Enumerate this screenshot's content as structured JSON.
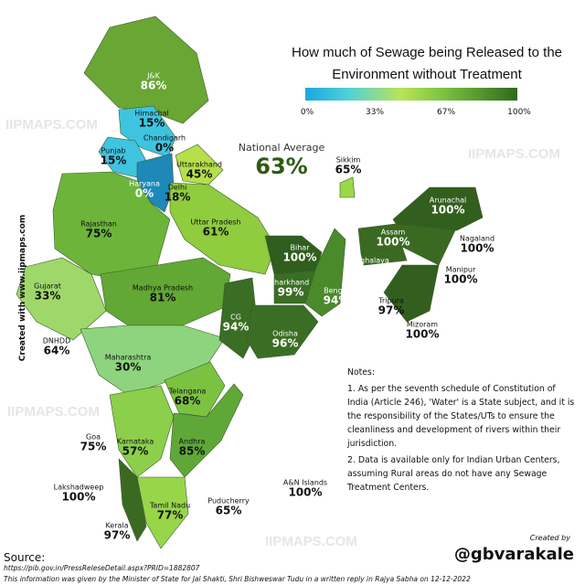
{
  "watermark": "IIPMAPS.COM",
  "title_line1": "How much of Sewage being Released to the",
  "title_line2": "Environment without Treatment",
  "legend": {
    "ticks": [
      "0%",
      "33%",
      "67%",
      "100%"
    ],
    "colors": [
      "#1aa7e0",
      "#b9e35a",
      "#7cc241",
      "#2f6a1d"
    ]
  },
  "national_average": {
    "label": "National Average",
    "value": "63%"
  },
  "states": [
    {
      "name": "J&K",
      "value": "86%"
    },
    {
      "name": "Himachal",
      "value": "15%"
    },
    {
      "name": "Punjab",
      "value": "15%"
    },
    {
      "name": "Chandigarh",
      "value": "0%"
    },
    {
      "name": "Haryana",
      "value": "0%"
    },
    {
      "name": "Uttarakhand",
      "value": "45%"
    },
    {
      "name": "Delhi",
      "value": "18%"
    },
    {
      "name": "Rajasthan",
      "value": "75%"
    },
    {
      "name": "Uttar Pradesh",
      "value": "61%"
    },
    {
      "name": "Gujarat",
      "value": "33%"
    },
    {
      "name": "Madhya Pradesh",
      "value": "81%"
    },
    {
      "name": "DNHDD",
      "value": "64%"
    },
    {
      "name": "Maharashtra",
      "value": "30%"
    },
    {
      "name": "Bihar",
      "value": "100%"
    },
    {
      "name": "Jharkhand",
      "value": "99%"
    },
    {
      "name": "Bengal",
      "value": "94%"
    },
    {
      "name": "CG",
      "value": "94%"
    },
    {
      "name": "Odisha",
      "value": "96%"
    },
    {
      "name": "Sikkim",
      "value": "65%"
    },
    {
      "name": "Arunachal",
      "value": "100%"
    },
    {
      "name": "Assam",
      "value": "100%"
    },
    {
      "name": "Meghalaya",
      "value": "100%"
    },
    {
      "name": "Nagaland",
      "value": "100%"
    },
    {
      "name": "Manipur",
      "value": "100%"
    },
    {
      "name": "Tripura",
      "value": "97%"
    },
    {
      "name": "Mizoram",
      "value": "100%"
    },
    {
      "name": "Telangana",
      "value": "68%"
    },
    {
      "name": "Goa",
      "value": "75%"
    },
    {
      "name": "Karnataka",
      "value": "57%"
    },
    {
      "name": "Andhra",
      "value": "85%"
    },
    {
      "name": "Lakshadweep",
      "value": "100%"
    },
    {
      "name": "A&N Islands",
      "value": "100%"
    },
    {
      "name": "Tamil Nadu",
      "value": "77%"
    },
    {
      "name": "Puducherry",
      "value": "65%"
    },
    {
      "name": "Kerala",
      "value": "97%"
    }
  ],
  "notes": {
    "heading": "Notes:",
    "items": [
      "1. As per the seventh schedule of Constitution of India (Article 246), 'Water' is a State subject, and it is the responsibility of the States/UTs to ensure the cleanliness and development of rivers within their jurisdiction.",
      "2. Data is available only for Indian Urban Centers, assuming Rural areas do not have any Sewage Treatment Centers."
    ]
  },
  "side_credit": "Created with www.iipmaps.com",
  "source_label": "Source:",
  "source_url": "https://pib.gov.in/PressReleseDetail.aspx?PRID=1882807",
  "info": "This information was given by the Minister of State for Jal Shakti, Shri Bishweswar Tudu in a written reply in Rajya Sabha on 12-12-2022",
  "created_by": "Created by",
  "handle": "@gbvarakale"
}
